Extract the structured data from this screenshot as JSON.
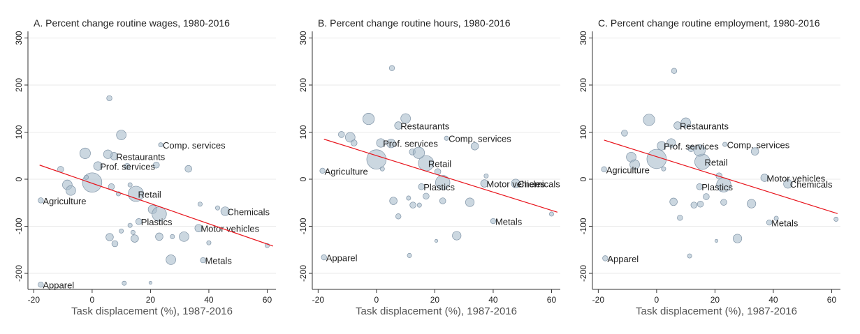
{
  "chart_data": [
    {
      "type": "scatter",
      "title": "A. Percent change routine wages, 1980-2016",
      "xlabel": "Task displacement (%), 1987-2016",
      "xlim": [
        -22,
        63
      ],
      "ylim": [
        -234,
        314
      ],
      "xticks": [
        -20,
        0,
        20,
        40,
        60
      ],
      "yticks": [
        -200,
        -100,
        0,
        100,
        200,
        300
      ],
      "grid": true,
      "series": [
        {
          "color": "#a9bccc",
          "x": [
            -17.6,
            -17.6,
            7.5,
            2,
            23.5,
            15,
            16,
            45.6,
            36.5,
            38,
            0,
            5.9,
            10,
            -2.4,
            5.4,
            -10.8,
            -8.5,
            -7.3,
            6.6,
            22,
            33,
            12,
            -2,
            9,
            13,
            20.7,
            23,
            37,
            43,
            6,
            7.8,
            10,
            13,
            14,
            14.6,
            23,
            27.5,
            31.5,
            27,
            40,
            11,
            20,
            60
          ],
          "y": [
            -224,
            -45,
            49,
            28,
            73,
            -31,
            -90,
            -68,
            -104,
            -172,
            -7,
            172,
            94,
            55,
            53,
            21,
            -12,
            -24,
            -16,
            30,
            22,
            27,
            4,
            -31,
            -12,
            -64,
            -74,
            -53,
            -61,
            -123,
            -137,
            -110,
            -98,
            -113,
            -126,
            -122,
            -122,
            -122,
            -171,
            -135,
            -221,
            -220,
            -141
          ],
          "sizes": [
            3,
            3,
            6,
            8,
            2,
            25,
            4,
            8,
            6,
            3,
            40,
            3,
            10,
            12,
            8,
            4,
            10,
            10,
            4,
            4,
            5,
            4,
            2,
            2,
            2,
            8,
            22,
            2,
            2,
            6,
            4,
            2,
            2,
            2,
            6,
            6,
            2,
            10,
            10,
            2,
            2,
            1,
            2
          ],
          "labels": [
            "Apparel",
            "Agriculture",
            "Restaurants",
            "Prof. services",
            "Comp. services",
            "Retail",
            "Plastics",
            "Chemicals",
            "Motor vehicles",
            "Metals",
            null,
            null,
            null,
            null,
            null,
            null,
            null,
            null,
            null,
            null,
            null,
            null,
            null,
            null,
            null,
            null,
            null,
            null,
            null,
            null,
            null,
            null,
            null,
            null,
            null,
            null,
            null,
            null,
            null,
            null,
            null,
            null,
            null
          ]
        }
      ],
      "fit": {
        "color": "#e8141c",
        "x": [
          -18,
          62
        ],
        "values": [
          30,
          -142
        ]
      }
    },
    {
      "type": "scatter",
      "title": "B. Percent change routine hours, 1980-2016",
      "xlabel": "Task displacement (%), 1987-2016",
      "xlim": [
        -22,
        63
      ],
      "ylim": [
        -234,
        314
      ],
      "xticks": [
        -20,
        0,
        20,
        40,
        60
      ],
      "yticks": [
        -200,
        -100,
        0,
        100,
        200,
        300
      ],
      "grid": true,
      "series": [
        {
          "color": "#a9bccc",
          "x": [
            -18,
            -18.5,
            7.5,
            1.5,
            24,
            17,
            15.4,
            47.7,
            37,
            40,
            5.3,
            -2.7,
            10,
            -12,
            -9,
            -7.7,
            0,
            5,
            12.3,
            14.5,
            21,
            22.7,
            2,
            11,
            12.5,
            14.7,
            17,
            22.7,
            32,
            5.8,
            7.5,
            11.3,
            27.5,
            20.5,
            33.7,
            37.6,
            60
          ],
          "y": [
            -166,
            18,
            114,
            77,
            87,
            34,
            -16,
            -9,
            -9,
            -89,
            236,
            128,
            129,
            95,
            89,
            77,
            42,
            76,
            58,
            56,
            16,
            -7,
            22,
            -40,
            -55,
            -55,
            -36,
            -46,
            -49,
            -46,
            -79,
            -162,
            -120,
            -131,
            70,
            7,
            -74
          ],
          "sizes": [
            3,
            3,
            6,
            8,
            2,
            25,
            4,
            8,
            6,
            3,
            3,
            14,
            10,
            4,
            10,
            4,
            40,
            8,
            4,
            14,
            4,
            22,
            2,
            2,
            4,
            2,
            4,
            4,
            8,
            6,
            3,
            2,
            8,
            1,
            6,
            2,
            2
          ],
          "labels": [
            "Apparel",
            "Agriculture",
            "Restaurants",
            "Prof. services",
            "Comp. services",
            "Retail",
            "Plastics",
            "Chemicals",
            "Motor vehicles",
            "Metals",
            null,
            null,
            null,
            null,
            null,
            null,
            null,
            null,
            null,
            null,
            null,
            null,
            null,
            null,
            null,
            null,
            null,
            null,
            null,
            null,
            null,
            null,
            null,
            null,
            null,
            null,
            null
          ]
        }
      ],
      "fit": {
        "color": "#e8141c",
        "x": [
          -18,
          62
        ],
        "values": [
          85,
          -70
        ]
      }
    },
    {
      "type": "scatter",
      "title": "C. Percent change routine employment, 1980-2016",
      "xlabel": "Task displacement (%), 1987-2016",
      "xlim": [
        -22,
        63
      ],
      "ylim": [
        -234,
        314
      ],
      "xticks": [
        -20,
        0,
        20,
        40,
        60
      ],
      "yticks": [
        -200,
        -100,
        0,
        100,
        200,
        300
      ],
      "grid": true,
      "series": [
        {
          "color": "#a9bccc",
          "x": [
            -17.6,
            -18,
            7.2,
            1.7,
            23.4,
            15.7,
            14.7,
            45,
            37,
            38.6,
            6,
            -2.6,
            10,
            -11,
            -8.7,
            -7.5,
            0,
            5,
            11.8,
            14.7,
            21.4,
            23,
            2.4,
            5.8,
            8,
            12.8,
            15,
            17,
            23,
            32.5,
            11.3,
            27.7,
            20.5,
            33.7,
            41,
            61.5
          ],
          "y": [
            -168,
            21,
            114,
            71,
            74,
            37,
            -16,
            -10,
            3,
            -92,
            230,
            126,
            120,
            98,
            47,
            31,
            43,
            77,
            65,
            61,
            7,
            -12,
            22,
            -48,
            -82,
            -55,
            -53,
            -37,
            -49,
            -52,
            -163,
            -126,
            -131,
            59,
            -83,
            -85
          ],
          "sizes": [
            3,
            3,
            6,
            8,
            2,
            25,
            4,
            8,
            6,
            3,
            3,
            14,
            10,
            4,
            10,
            10,
            40,
            8,
            4,
            14,
            4,
            22,
            2,
            6,
            3,
            4,
            4,
            4,
            4,
            8,
            2,
            8,
            1,
            6,
            2,
            2
          ],
          "labels": [
            "Apparel",
            "Agriculture",
            "Restaurants",
            "Prof. services",
            "Comp. services",
            "Retail",
            "Plastics",
            "Chemicals",
            "Motor vehicles",
            "Metals",
            null,
            null,
            null,
            null,
            null,
            null,
            null,
            null,
            null,
            null,
            null,
            null,
            null,
            null,
            null,
            null,
            null,
            null,
            null,
            null,
            null,
            null,
            null,
            null,
            null,
            null
          ]
        }
      ],
      "fit": {
        "color": "#e8141c",
        "x": [
          -18,
          62
        ],
        "values": [
          83,
          -73
        ]
      }
    }
  ]
}
